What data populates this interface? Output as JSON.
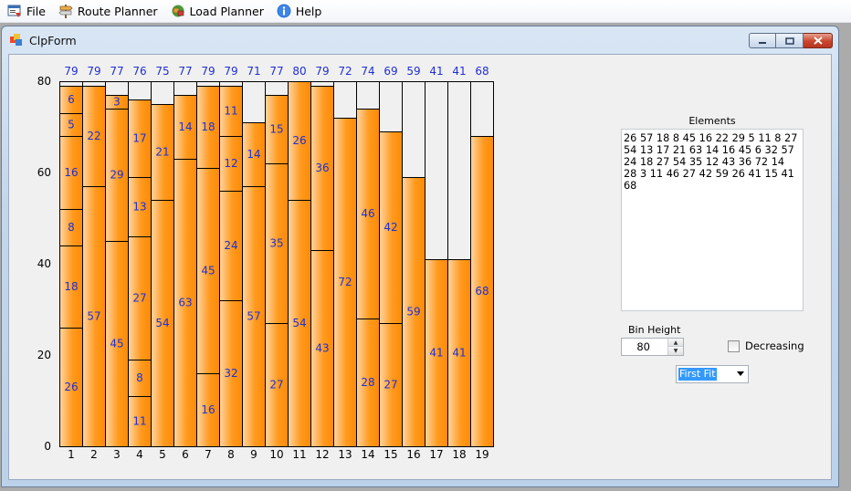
{
  "menu": {
    "items": [
      {
        "label": "File",
        "icon": "file-form-icon"
      },
      {
        "label": "Route Planner",
        "icon": "signpost-icon"
      },
      {
        "label": "Load Planner",
        "icon": "load-planner-icon"
      },
      {
        "label": "Help",
        "icon": "info-icon"
      }
    ]
  },
  "window": {
    "title": "ClpForm",
    "buttons": [
      "minimize",
      "restore",
      "close"
    ]
  },
  "chart_data": {
    "type": "bar",
    "subtype": "stacked-bin-packing",
    "categories": [
      "1",
      "2",
      "3",
      "4",
      "5",
      "6",
      "7",
      "8",
      "9",
      "10",
      "11",
      "12",
      "13",
      "14",
      "15",
      "16",
      "17",
      "18",
      "19"
    ],
    "totals": [
      79,
      79,
      77,
      76,
      75,
      77,
      79,
      79,
      71,
      77,
      80,
      79,
      72,
      74,
      69,
      59,
      41,
      41,
      68
    ],
    "bins": [
      [
        26,
        18,
        8,
        16,
        5,
        6
      ],
      [
        57,
        22
      ],
      [
        45,
        29,
        3
      ],
      [
        11,
        8,
        27,
        13,
        17
      ],
      [
        54,
        21
      ],
      [
        63,
        14
      ],
      [
        16,
        45,
        18
      ],
      [
        32,
        24,
        12,
        11
      ],
      [
        57,
        14
      ],
      [
        27,
        35,
        15
      ],
      [
        54,
        26
      ],
      [
        43,
        36
      ],
      [
        72
      ],
      [
        28,
        46
      ],
      [
        27,
        42
      ],
      [
        59
      ],
      [
        41
      ],
      [
        41
      ],
      [
        68
      ]
    ],
    "ylim": [
      0,
      80
    ],
    "yticks": [
      "0",
      "20",
      "40",
      "60",
      "80"
    ],
    "bar_fill": "#ff9a1f",
    "label_color": "#1f2fd4"
  },
  "panel": {
    "elements_label": "Elements",
    "elements_text": "26 57 18 8 45 16 22 29 5 11 8 27 54 13 17 21 63 14 16 45 6 32 57 24 18 27 54 35 12 43 36 72 14 28 3 11 46 27 42 59 26 41 15 41 68",
    "bin_height_label": "Bin Height",
    "bin_height_value": "80",
    "decreasing_label": "Decreasing",
    "decreasing_checked": false,
    "algorithm_selected": "First Fit"
  }
}
